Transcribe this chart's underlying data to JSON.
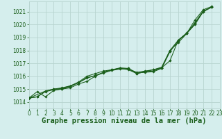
{
  "title": "Graphe pression niveau de la mer (hPa)",
  "background_color": "#d5eeed",
  "grid_color": "#b8d4d0",
  "line_color": "#1a5e1a",
  "xlim": [
    0,
    23
  ],
  "ylim": [
    1013.5,
    1021.8
  ],
  "yticks": [
    1014,
    1015,
    1016,
    1017,
    1018,
    1019,
    1020,
    1021
  ],
  "xticks": [
    0,
    1,
    2,
    3,
    4,
    5,
    6,
    7,
    8,
    9,
    10,
    11,
    12,
    13,
    14,
    15,
    16,
    17,
    18,
    19,
    20,
    21,
    22,
    23
  ],
  "series": [
    {
      "x": [
        0,
        1,
        2,
        3,
        4,
        5,
        6,
        7,
        8,
        9,
        10,
        11,
        12,
        13,
        14,
        15,
        16,
        17,
        18,
        19,
        20,
        21,
        22
      ],
      "y": [
        1014.3,
        1014.8,
        1014.4,
        1014.9,
        1015.0,
        1015.1,
        1015.4,
        1015.6,
        1016.0,
        1016.3,
        1016.5,
        1016.65,
        1016.6,
        1016.25,
        1016.3,
        1016.35,
        1016.6,
        1017.9,
        1018.75,
        1019.3,
        1020.15,
        1021.05,
        1021.35
      ]
    },
    {
      "x": [
        0,
        1,
        2,
        3,
        4,
        5,
        6,
        7,
        8,
        9,
        10,
        11,
        12,
        13,
        14,
        15,
        16,
        17,
        18,
        19,
        20,
        21,
        22
      ],
      "y": [
        1014.3,
        1014.4,
        1014.85,
        1015.0,
        1015.05,
        1015.25,
        1015.5,
        1015.85,
        1016.05,
        1016.25,
        1016.45,
        1016.55,
        1016.6,
        1016.2,
        1016.35,
        1016.4,
        1016.65,
        1018.0,
        1018.8,
        1019.35,
        1020.05,
        1021.0,
        1021.35
      ]
    },
    {
      "x": [
        0,
        1,
        2,
        3,
        4,
        5,
        6,
        7,
        8,
        9,
        10,
        11,
        12,
        13,
        14,
        15,
        16,
        17,
        18,
        19,
        20,
        21,
        22
      ],
      "y": [
        1014.3,
        1014.4,
        1014.8,
        1014.95,
        1015.0,
        1015.2,
        1015.5,
        1015.9,
        1016.05,
        1016.3,
        1016.5,
        1016.6,
        1016.55,
        1016.3,
        1016.4,
        1016.5,
        1016.65,
        1017.2,
        1018.8,
        1019.3,
        1020.0,
        1021.0,
        1021.35
      ]
    },
    {
      "x": [
        0,
        2,
        3,
        4,
        5,
        6,
        7,
        8,
        9,
        10,
        11,
        12,
        13,
        14,
        15,
        16,
        17,
        18,
        19,
        20,
        21,
        22
      ],
      "y": [
        1014.3,
        1014.85,
        1015.0,
        1015.1,
        1015.25,
        1015.55,
        1016.0,
        1016.2,
        1016.4,
        1016.5,
        1016.6,
        1016.5,
        1016.2,
        1016.35,
        1016.5,
        1016.7,
        1018.0,
        1018.6,
        1019.3,
        1020.35,
        1021.15,
        1021.4
      ]
    }
  ],
  "tick_fontsize": 5.5,
  "title_fontsize": 7.5
}
